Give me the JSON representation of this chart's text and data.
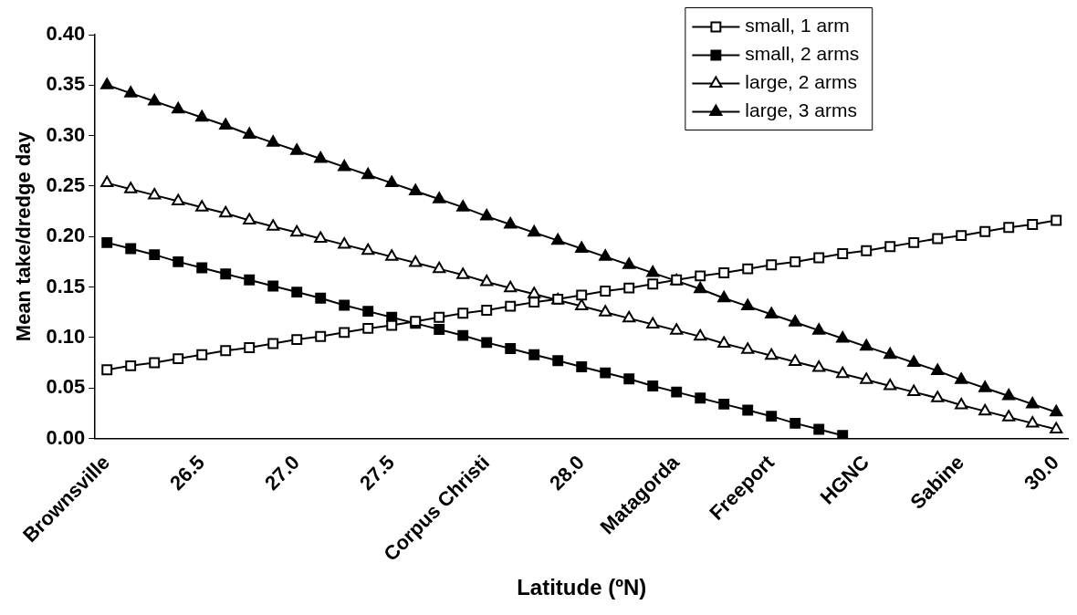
{
  "chart_data": {
    "type": "line",
    "xlabel": "Latitude (ºN)",
    "ylabel": "Mean take/dredge day",
    "categories": [
      "Brownsville",
      null,
      null,
      null,
      "26.5",
      null,
      null,
      null,
      "27.0",
      null,
      null,
      null,
      "27.5",
      null,
      null,
      null,
      "Corpus Christi",
      null,
      null,
      null,
      "28.0",
      null,
      null,
      null,
      "Matagorda",
      null,
      null,
      null,
      "Freeport",
      null,
      null,
      null,
      "HGNC",
      null,
      null,
      null,
      "Sabine",
      null,
      null,
      null,
      "30.0"
    ],
    "series": [
      {
        "name": "small, 1 arm",
        "color": "#000000",
        "marker": "square_open",
        "values": [
          0.068,
          0.072,
          0.075,
          0.079,
          0.083,
          0.087,
          0.09,
          0.094,
          0.098,
          0.101,
          0.105,
          0.109,
          0.112,
          0.116,
          0.12,
          0.124,
          0.127,
          0.131,
          0.135,
          0.138,
          0.142,
          0.146,
          0.149,
          0.153,
          0.157,
          0.161,
          0.164,
          0.168,
          0.172,
          0.175,
          0.179,
          0.183,
          0.186,
          0.19,
          0.194,
          0.198,
          0.201,
          0.205,
          0.209,
          0.212,
          0.216
        ]
      },
      {
        "name": "small, 2 arms",
        "color": "#000000",
        "marker": "square",
        "values": [
          0.194,
          0.188,
          0.182,
          0.175,
          0.169,
          0.163,
          0.157,
          0.151,
          0.145,
          0.139,
          0.132,
          0.126,
          0.12,
          0.114,
          0.108,
          0.102,
          0.095,
          0.089,
          0.083,
          0.077,
          0.071,
          0.065,
          0.059,
          0.052,
          0.046,
          0.04,
          0.034,
          0.028,
          0.022,
          0.015,
          0.009,
          0.003,
          null,
          null,
          null,
          null,
          null,
          null,
          null,
          null,
          null
        ]
      },
      {
        "name": "large, 2 arms",
        "color": "#000000",
        "marker": "triangle_open",
        "values": [
          0.253,
          0.247,
          0.241,
          0.235,
          0.229,
          0.223,
          0.216,
          0.21,
          0.204,
          0.198,
          0.192,
          0.186,
          0.18,
          0.174,
          0.168,
          0.162,
          0.155,
          0.149,
          0.143,
          0.137,
          0.131,
          0.125,
          0.119,
          0.113,
          0.107,
          0.101,
          0.094,
          0.088,
          0.082,
          0.076,
          0.07,
          0.064,
          0.058,
          0.052,
          0.046,
          0.04,
          0.033,
          0.027,
          0.021,
          0.015,
          0.009
        ]
      },
      {
        "name": "large, 3 arms",
        "color": "#000000",
        "marker": "triangle",
        "values": [
          0.35,
          0.342,
          0.334,
          0.326,
          0.318,
          0.31,
          0.301,
          0.293,
          0.285,
          0.277,
          0.269,
          0.261,
          0.253,
          0.245,
          0.237,
          0.229,
          0.22,
          0.212,
          0.204,
          0.196,
          0.188,
          0.18,
          0.172,
          0.164,
          0.156,
          0.148,
          0.139,
          0.131,
          0.123,
          0.115,
          0.107,
          0.099,
          0.091,
          0.083,
          0.075,
          0.067,
          0.058,
          0.05,
          0.042,
          0.034,
          0.026
        ]
      }
    ],
    "ylim": [
      0,
      0.4
    ],
    "yticks": [
      {
        "value": 0,
        "label": "0.00"
      },
      0.05,
      {
        "value": 0.1,
        "label": "0.10"
      },
      0.15,
      {
        "value": 0.2,
        "label": "0.20"
      },
      0.25,
      {
        "value": 0.3,
        "label": "0.30"
      },
      0.35,
      {
        "value": 0.4,
        "label": "0.40"
      }
    ],
    "grid": false,
    "legend": "top right",
    "line_style": "solid"
  }
}
